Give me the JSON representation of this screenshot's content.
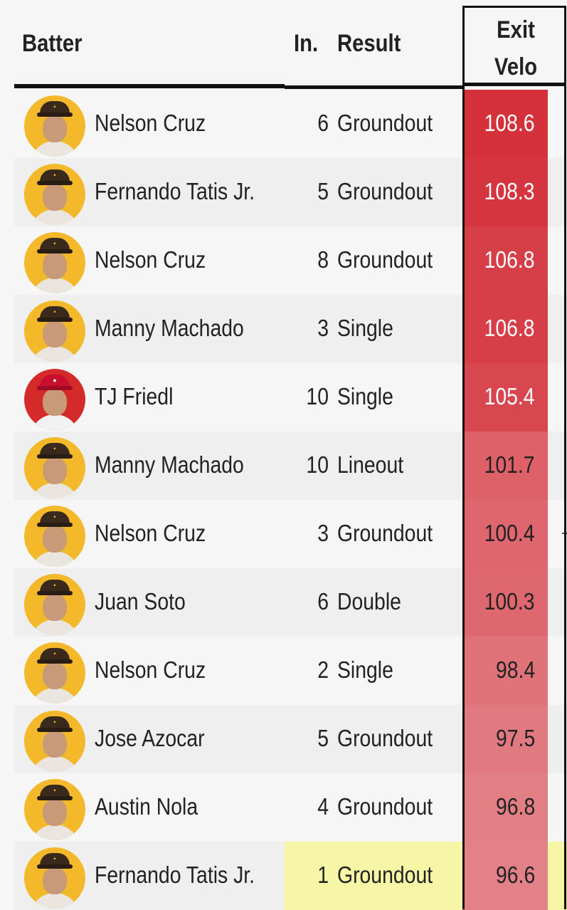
{
  "header": {
    "batter": "Batter",
    "inning": "In.",
    "result": "Result",
    "exit_velo_line1": "Exit",
    "exit_velo_line2": "Velo"
  },
  "rows": [
    {
      "batter": "Nelson Cruz",
      "inning": "6",
      "result": "Groundout",
      "exit_velo": "108.6",
      "ev_color": "#d4313a",
      "ev_text": "#ffffff",
      "avatar_bg": "#f4b92a",
      "team": "SD"
    },
    {
      "batter": "Fernando Tatis Jr.",
      "inning": "5",
      "result": "Groundout",
      "exit_velo": "108.3",
      "ev_color": "#d5353e",
      "ev_text": "#ffffff",
      "avatar_bg": "#f4b92a",
      "team": "SD"
    },
    {
      "batter": "Nelson Cruz",
      "inning": "8",
      "result": "Groundout",
      "exit_velo": "106.8",
      "ev_color": "#d63f48",
      "ev_text": "#ffffff",
      "avatar_bg": "#f4b92a",
      "team": "SD"
    },
    {
      "batter": "Manny Machado",
      "inning": "3",
      "result": "Single",
      "exit_velo": "106.8",
      "ev_color": "#d63f48",
      "ev_text": "#ffffff",
      "avatar_bg": "#f4b92a",
      "team": "SD"
    },
    {
      "batter": "TJ Friedl",
      "inning": "10",
      "result": "Single",
      "exit_velo": "105.4",
      "ev_color": "#d8474f",
      "ev_text": "#ffffff",
      "avatar_bg": "#d42a2a",
      "team": "CIN"
    },
    {
      "batter": "Manny Machado",
      "inning": "10",
      "result": "Lineout",
      "exit_velo": "101.7",
      "ev_color": "#de6068",
      "ev_text": "#222222",
      "avatar_bg": "#f4b92a",
      "team": "SD"
    },
    {
      "batter": "Nelson Cruz",
      "inning": "3",
      "result": "Groundout",
      "exit_velo": "100.4",
      "ev_color": "#df666e",
      "ev_text": "#222222",
      "avatar_bg": "#f4b92a",
      "team": "SD"
    },
    {
      "batter": "Juan Soto",
      "inning": "6",
      "result": "Double",
      "exit_velo": "100.3",
      "ev_color": "#df6870",
      "ev_text": "#222222",
      "avatar_bg": "#f4b92a",
      "team": "SD"
    },
    {
      "batter": "Nelson Cruz",
      "inning": "2",
      "result": "Single",
      "exit_velo": "98.4",
      "ev_color": "#e07279",
      "ev_text": "#222222",
      "avatar_bg": "#f4b92a",
      "team": "SD"
    },
    {
      "batter": "Jose Azocar",
      "inning": "5",
      "result": "Groundout",
      "exit_velo": "97.5",
      "ev_color": "#e07a80",
      "ev_text": "#222222",
      "avatar_bg": "#f4b92a",
      "team": "SD"
    },
    {
      "batter": "Austin Nola",
      "inning": "4",
      "result": "Groundout",
      "exit_velo": "96.8",
      "ev_color": "#e27f85",
      "ev_text": "#222222",
      "avatar_bg": "#f4b92a",
      "team": "SD"
    },
    {
      "batter": "Fernando Tatis Jr.",
      "inning": "1",
      "result": "Groundout",
      "exit_velo": "96.6",
      "ev_color": "#e28288",
      "ev_text": "#222222",
      "avatar_bg": "#f4b92a",
      "team": "SD",
      "highlighted": true
    }
  ]
}
